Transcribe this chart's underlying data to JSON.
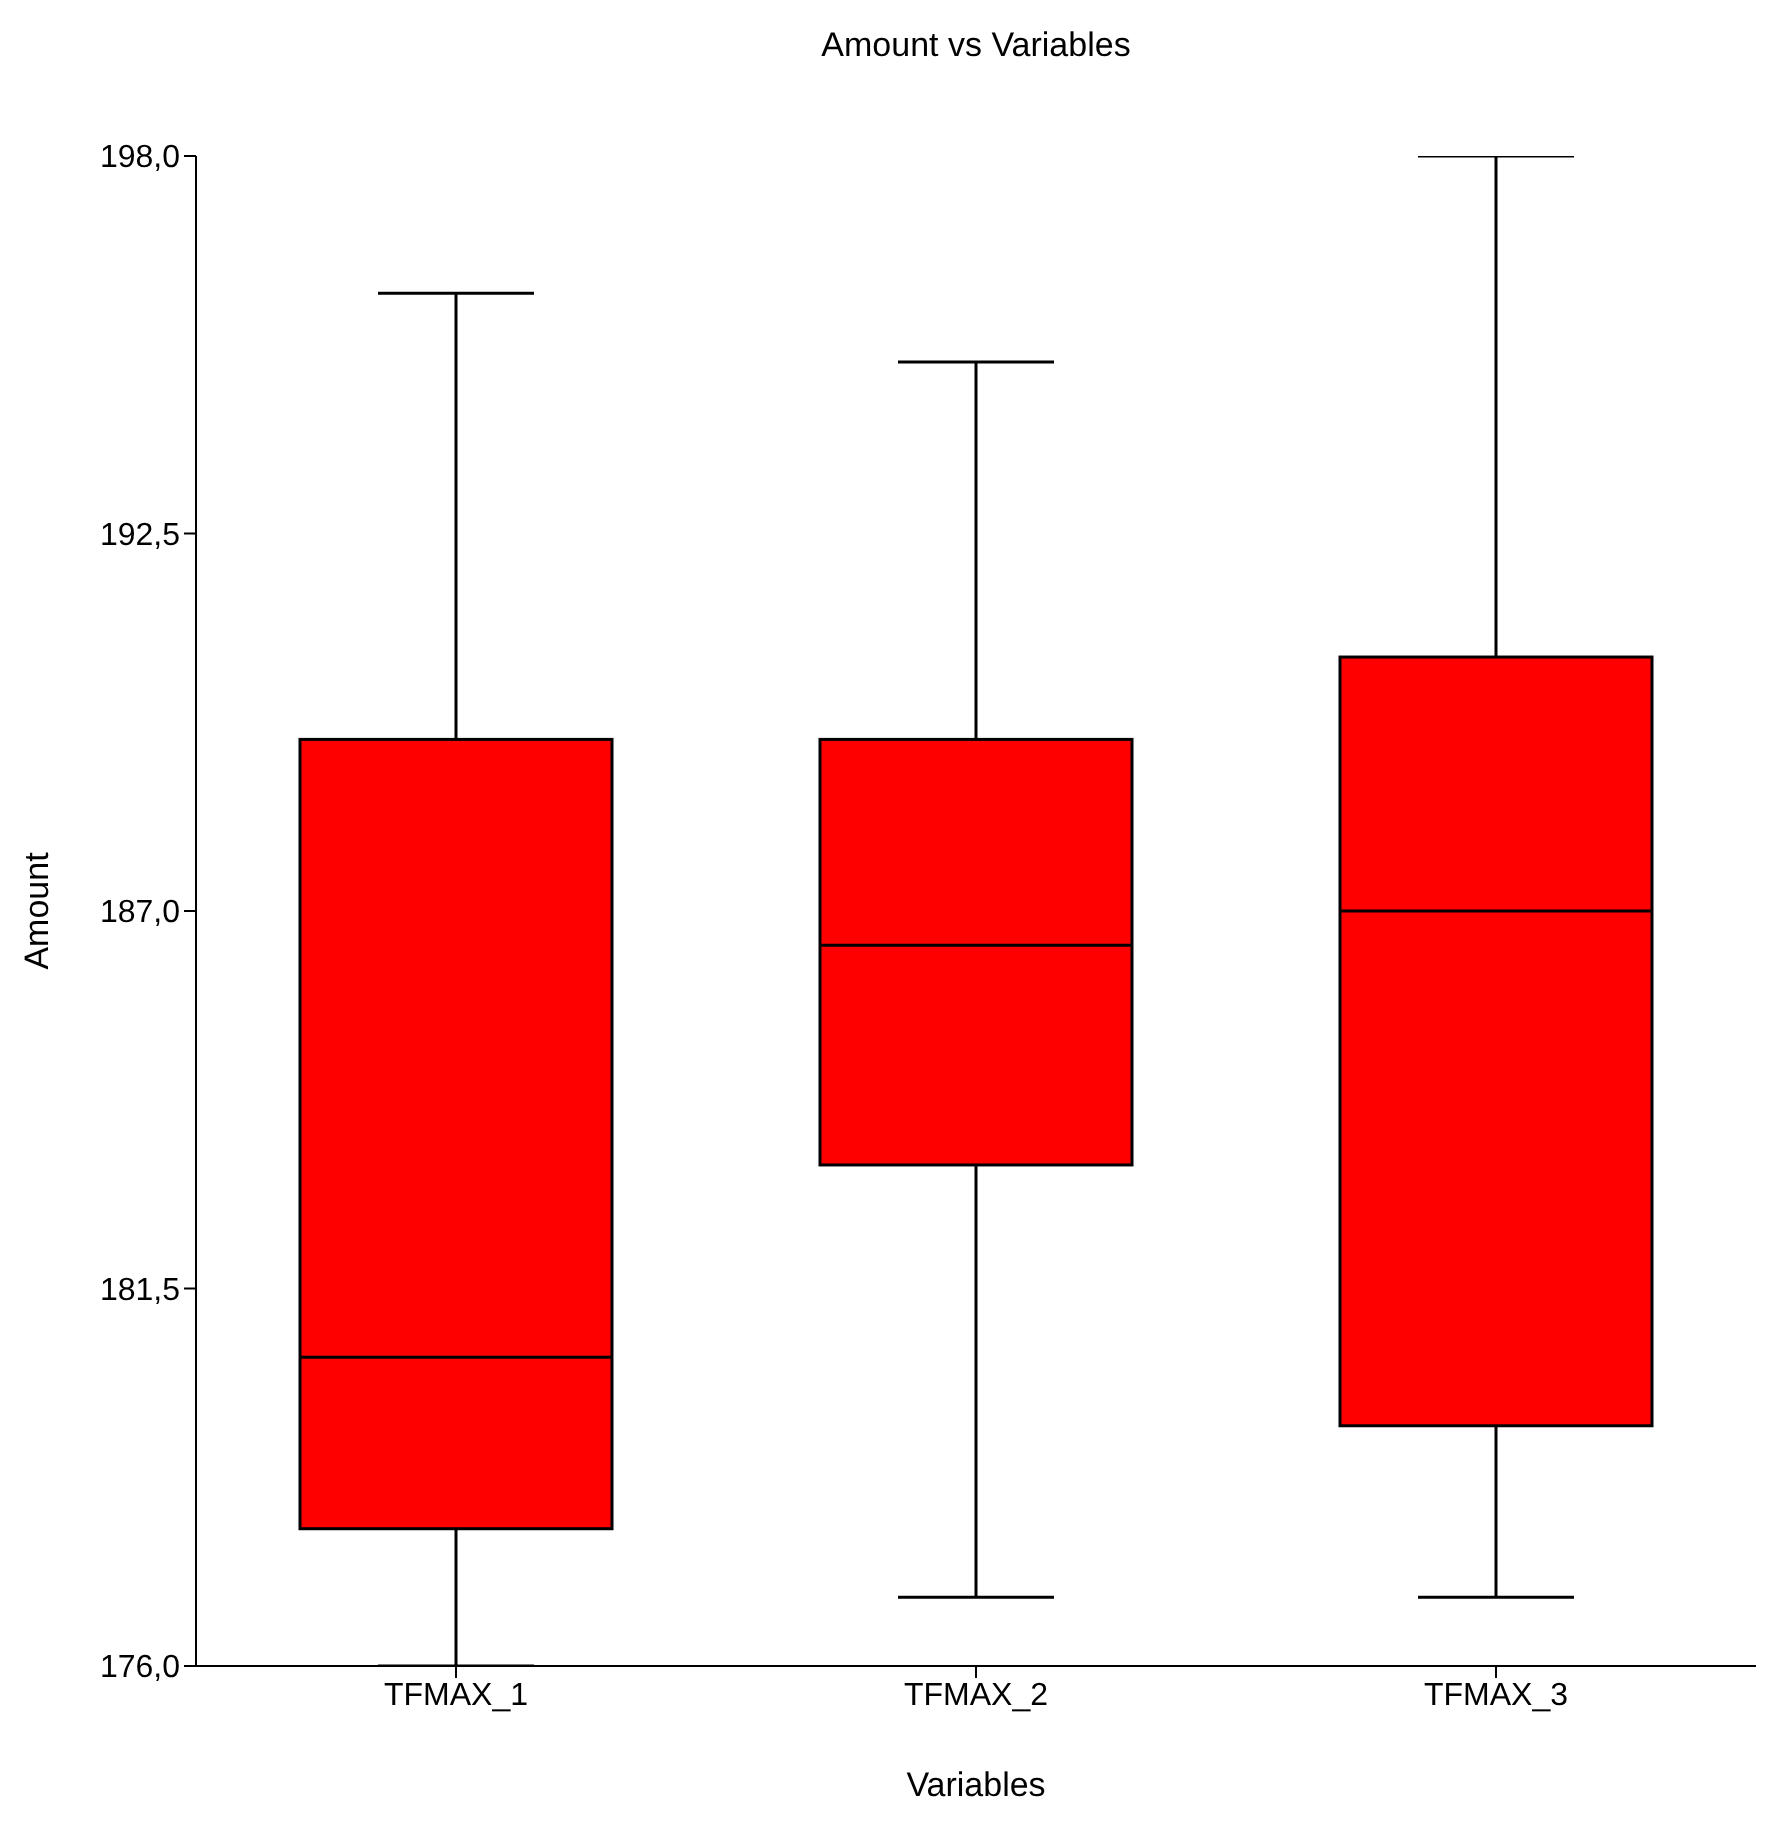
{
  "chart_data": {
    "type": "box",
    "title": "Amount vs Variables",
    "xlabel": "Variables",
    "ylabel": "Amount",
    "categories": [
      "TFMAX_1",
      "TFMAX_2",
      "TFMAX_3"
    ],
    "color": "#ff0000",
    "boxes": [
      {
        "low": 176,
        "q1": 178,
        "median": 180.5,
        "q3": 189.5,
        "high": 196
      },
      {
        "low": 177,
        "q1": 183.3,
        "median": 186.5,
        "q3": 189.5,
        "high": 195
      },
      {
        "low": 177,
        "q1": 179.5,
        "median": 187,
        "q3": 190.7,
        "high": 198
      }
    ],
    "ylim": [
      176,
      198
    ],
    "yticks": [
      {
        "value": 176,
        "label": "176,0"
      },
      {
        "value": 181.5,
        "label": "181,5"
      },
      {
        "value": 187,
        "label": "187,0"
      },
      {
        "value": 192.5,
        "label": "192,5"
      },
      {
        "value": 198,
        "label": "198,0"
      }
    ],
    "grid": false
  }
}
